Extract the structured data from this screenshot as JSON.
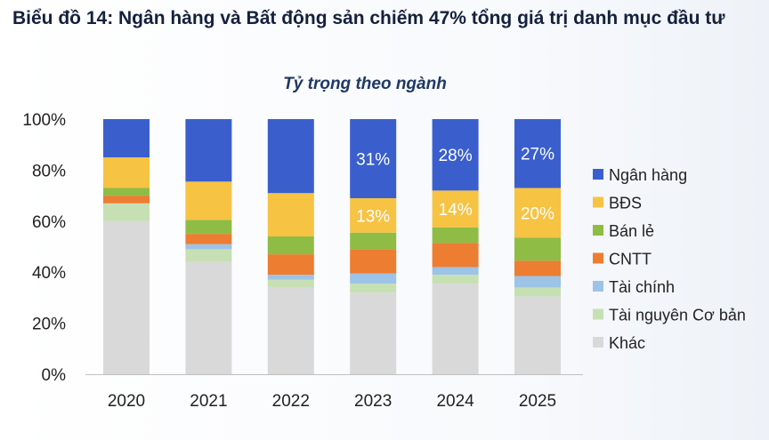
{
  "page_title": "Biểu đồ 14: Ngân hàng và Bất động sản chiếm 47% tổng giá trị danh mục đầu tư",
  "chart_data": {
    "type": "bar",
    "stacked": true,
    "title": "Tỷ trọng theo ngành",
    "categories": [
      "2020",
      "2021",
      "2022",
      "2023",
      "2024",
      "2025"
    ],
    "ylim": [
      0,
      100
    ],
    "yticks": [
      "0%",
      "20%",
      "40%",
      "60%",
      "80%",
      "100%"
    ],
    "yticks_values": [
      0,
      20,
      40,
      60,
      80,
      100
    ],
    "grid": false,
    "legend_position": "right",
    "series": [
      {
        "name": "Khác",
        "color": "#d9d9d9",
        "values": [
          60,
          44,
          34,
          32,
          35.5,
          30.5
        ]
      },
      {
        "name": "Tài nguyên Cơ bản",
        "color": "#c6e0b4",
        "values": [
          7,
          5,
          3,
          3.5,
          3.5,
          3.5
        ]
      },
      {
        "name": "Tài chính",
        "color": "#9dc3e6",
        "values": [
          0,
          2,
          2,
          4,
          3,
          4.5
        ]
      },
      {
        "name": "CNTT",
        "color": "#ed7d31",
        "values": [
          3,
          4,
          8,
          9.5,
          9.5,
          6
        ]
      },
      {
        "name": "Bán lẻ",
        "color": "#8fbc45",
        "values": [
          3,
          5.5,
          7,
          6.5,
          6,
          9
        ]
      },
      {
        "name": "BĐS",
        "color": "#f6c343",
        "values": [
          12,
          15,
          17,
          13.5,
          14.5,
          19.5
        ]
      },
      {
        "name": "Ngân hàng",
        "color": "#3a5fcd",
        "values": [
          15,
          24.5,
          29,
          31,
          28,
          27
        ]
      }
    ],
    "data_labels": [
      {
        "category": "2023",
        "series": "Ngân hàng",
        "text": "31%"
      },
      {
        "category": "2024",
        "series": "Ngân hàng",
        "text": "28%"
      },
      {
        "category": "2025",
        "series": "Ngân hàng",
        "text": "27%"
      },
      {
        "category": "2023",
        "series": "BĐS",
        "text": "13%"
      },
      {
        "category": "2024",
        "series": "BĐS",
        "text": "14%"
      },
      {
        "category": "2025",
        "series": "BĐS",
        "text": "20%"
      }
    ],
    "legend_order": [
      "Ngân hàng",
      "BĐS",
      "Bán lẻ",
      "CNTT",
      "Tài chính",
      "Tài nguyên Cơ bản",
      "Khác"
    ]
  }
}
